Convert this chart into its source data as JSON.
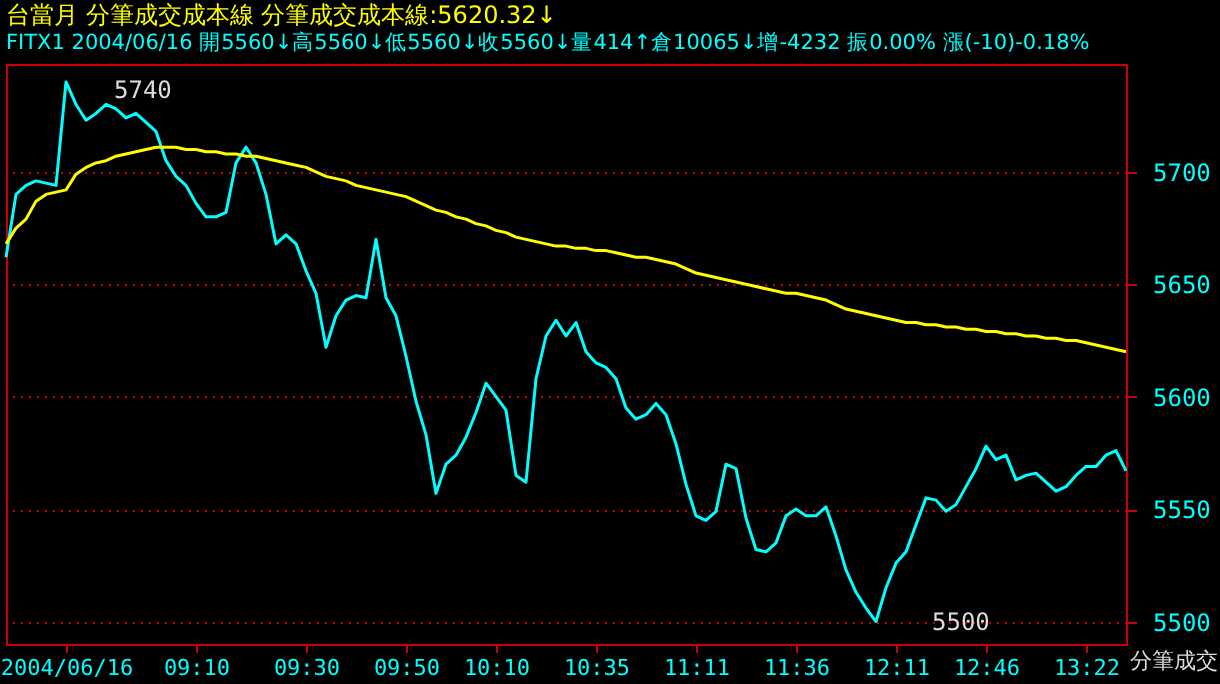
{
  "chart_data": {
    "type": "line",
    "title": "台當月  分筆成交成本線  分筆成交成本線:5620.32↓",
    "subtitle": "FITX1 2004/06/16 開5560↓高5560↓低5560↓收5560↓量414↑倉10065↓增-4232 振0.00% 漲(-10)-0.18%",
    "categories": [
      null,
      null,
      null,
      null,
      null,
      null,
      "2004/06/16",
      null,
      null,
      null,
      null,
      null,
      null,
      null,
      null,
      null,
      null,
      null,
      null,
      "09:10",
      null,
      null,
      null,
      null,
      null,
      null,
      null,
      null,
      null,
      null,
      "09:30",
      null,
      null,
      null,
      null,
      null,
      null,
      null,
      null,
      null,
      "09:50",
      null,
      null,
      null,
      null,
      null,
      null,
      null,
      null,
      "10:10",
      null,
      null,
      null,
      null,
      null,
      null,
      null,
      null,
      null,
      "10:35",
      null,
      null,
      null,
      null,
      null,
      null,
      null,
      null,
      null,
      "11:11",
      null,
      null,
      null,
      null,
      null,
      null,
      null,
      null,
      null,
      "11:36",
      null,
      null,
      null,
      null,
      null,
      null,
      null,
      null,
      null,
      "12:11",
      null,
      null,
      null,
      null,
      null,
      null,
      null,
      null,
      "12:46",
      null,
      null,
      null,
      null,
      null,
      null,
      null,
      null,
      null,
      "13:22",
      null,
      null,
      null,
      null
    ],
    "series": [
      {
        "color": "#00ffff",
        "values": [
          5662,
          5690,
          5694,
          5696,
          5695,
          5694,
          5740,
          5730,
          5723,
          5726,
          5730,
          5728,
          5724,
          5726,
          5722,
          5718,
          5705,
          5698,
          5694,
          5686,
          5680,
          5680,
          5682,
          5704,
          5711,
          5704,
          5690,
          5668,
          5672,
          5668,
          5656,
          5646,
          5622,
          5636,
          5643,
          5645,
          5644,
          5670,
          5644,
          5636,
          5618,
          5598,
          5583,
          5557,
          5570,
          5574,
          5582,
          5593,
          5606,
          5600,
          5594,
          5565,
          5562,
          5608,
          5627,
          5634,
          5627,
          5633,
          5620,
          5615,
          5613,
          5608,
          5595,
          5590,
          5592,
          5597,
          5592,
          5579,
          5561,
          5547,
          5545,
          5549,
          5570,
          5568,
          5546,
          5532,
          5531,
          5535,
          5547,
          5550,
          5547,
          5547,
          5551,
          5538,
          5523,
          5513,
          5506,
          5500,
          5515,
          5526,
          5531,
          5543,
          5555,
          5554,
          5549,
          5552,
          5560,
          5568,
          5578,
          5572,
          5574,
          5563,
          5565,
          5566,
          5562,
          5558,
          5560,
          5565,
          5569,
          5569,
          5574,
          5576,
          5567
        ]
      },
      {
        "color": "#ffff00",
        "values": [
          5668,
          5675,
          5679,
          5687,
          5690,
          5691,
          5692,
          5699,
          5702,
          5704,
          5705,
          5707,
          5708,
          5709,
          5710,
          5711,
          5711,
          5711,
          5710,
          5710,
          5709,
          5709,
          5708,
          5708,
          5707,
          5707,
          5706,
          5705,
          5704,
          5703,
          5702,
          5700,
          5698,
          5697,
          5696,
          5694,
          5693,
          5692,
          5691,
          5690,
          5689,
          5687,
          5685,
          5683,
          5682,
          5680,
          5679,
          5677,
          5676,
          5674,
          5673,
          5671,
          5670,
          5669,
          5668,
          5667,
          5667,
          5666,
          5666,
          5665,
          5665,
          5664,
          5663,
          5662,
          5662,
          5661,
          5660,
          5659,
          5657,
          5655,
          5654,
          5653,
          5652,
          5651,
          5650,
          5649,
          5648,
          5647,
          5646,
          5646,
          5645,
          5644,
          5643,
          5641,
          5639,
          5638,
          5637,
          5636,
          5635,
          5634,
          5633,
          5633,
          5632,
          5632,
          5631,
          5631,
          5630,
          5630,
          5629,
          5629,
          5628,
          5628,
          5627,
          5627,
          5626,
          5626,
          5625,
          5625,
          5624,
          5623,
          5622,
          5621,
          5620
        ]
      }
    ],
    "ylim": [
      5490,
      5748
    ],
    "yticks": [
      5500,
      5550,
      5600,
      5650,
      5700
    ],
    "grid": "y",
    "marker": "none",
    "line_style": "solid",
    "annotations": [
      "5740",
      "5500",
      "分筆成交"
    ]
  }
}
